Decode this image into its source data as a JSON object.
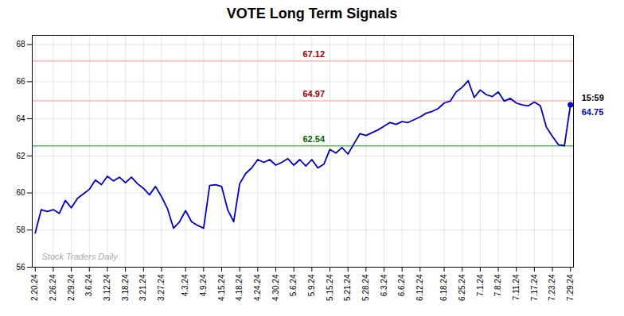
{
  "chart_data": {
    "type": "line",
    "title": "VOTE Long Term Signals",
    "categories": [
      "2.20.24",
      null,
      null,
      "2.26.24",
      null,
      null,
      "2.29.24",
      null,
      null,
      "3.6.24",
      null,
      null,
      "3.12.24",
      null,
      null,
      "3.18.24",
      null,
      null,
      "3.21.24",
      null,
      null,
      "3.27.24",
      null,
      null,
      null,
      "4.3.24",
      null,
      null,
      "4.9.24",
      null,
      null,
      "4.15.24",
      null,
      null,
      "4.18.24",
      null,
      null,
      "4.24.24",
      null,
      null,
      "4.30.24",
      null,
      null,
      "5.6.24",
      null,
      null,
      "5.9.24",
      null,
      null,
      "5.15.24",
      null,
      null,
      "5.21.24",
      null,
      null,
      "5.28.24",
      null,
      null,
      "6.3.24",
      null,
      null,
      "6.6.24",
      null,
      null,
      "6.12.24",
      null,
      null,
      null,
      "6.18.24",
      null,
      null,
      "6.25.24",
      null,
      null,
      "7.1.24",
      null,
      null,
      "7.8.24",
      null,
      null,
      "7.11.24",
      null,
      null,
      "7.17.24",
      null,
      null,
      "7.23.24",
      null,
      null,
      "7.29.24"
    ],
    "values": [
      57.85,
      59.1,
      59.0,
      59.1,
      58.9,
      59.6,
      59.2,
      59.7,
      59.95,
      60.2,
      60.7,
      60.45,
      60.9,
      60.65,
      60.85,
      60.55,
      60.85,
      60.5,
      60.25,
      59.9,
      60.35,
      59.8,
      59.15,
      58.1,
      58.45,
      59.05,
      58.45,
      58.25,
      58.1,
      60.4,
      60.45,
      60.35,
      59.1,
      58.45,
      60.5,
      61.05,
      61.35,
      61.8,
      61.65,
      61.8,
      61.5,
      61.65,
      61.85,
      61.5,
      61.8,
      61.45,
      61.8,
      61.35,
      61.55,
      62.35,
      62.15,
      62.45,
      62.1,
      62.65,
      63.2,
      63.1,
      63.25,
      63.4,
      63.6,
      63.8,
      63.7,
      63.85,
      63.8,
      63.95,
      64.1,
      64.3,
      64.4,
      64.55,
      64.85,
      64.95,
      65.45,
      65.7,
      66.05,
      65.15,
      65.55,
      65.3,
      65.2,
      65.45,
      64.95,
      65.1,
      64.85,
      64.75,
      64.7,
      64.9,
      64.7,
      63.55,
      63.05,
      62.6,
      62.55,
      64.75
    ],
    "color": "#0000cc",
    "ylim": [
      56,
      68.5
    ],
    "yticks": [
      56,
      58,
      60,
      62,
      64,
      66,
      68
    ],
    "grid": true,
    "reference_lines": [
      {
        "value": 67.12,
        "label": "67.12",
        "color": "#ffb3b3",
        "label_color": "#990000"
      },
      {
        "value": 64.97,
        "label": "64.97",
        "color": "#ffb3b3",
        "label_color": "#990000"
      },
      {
        "value": 62.54,
        "label": "62.54",
        "color": "#55bb55",
        "label_color": "#006600"
      }
    ],
    "last_point": {
      "value": 64.75,
      "label": "64.75",
      "time": "15:59",
      "color": "#0000cc",
      "time_color": "#000000"
    },
    "watermark": {
      "text": "Stock Traders Daily",
      "color": "#aaaaaa"
    }
  }
}
